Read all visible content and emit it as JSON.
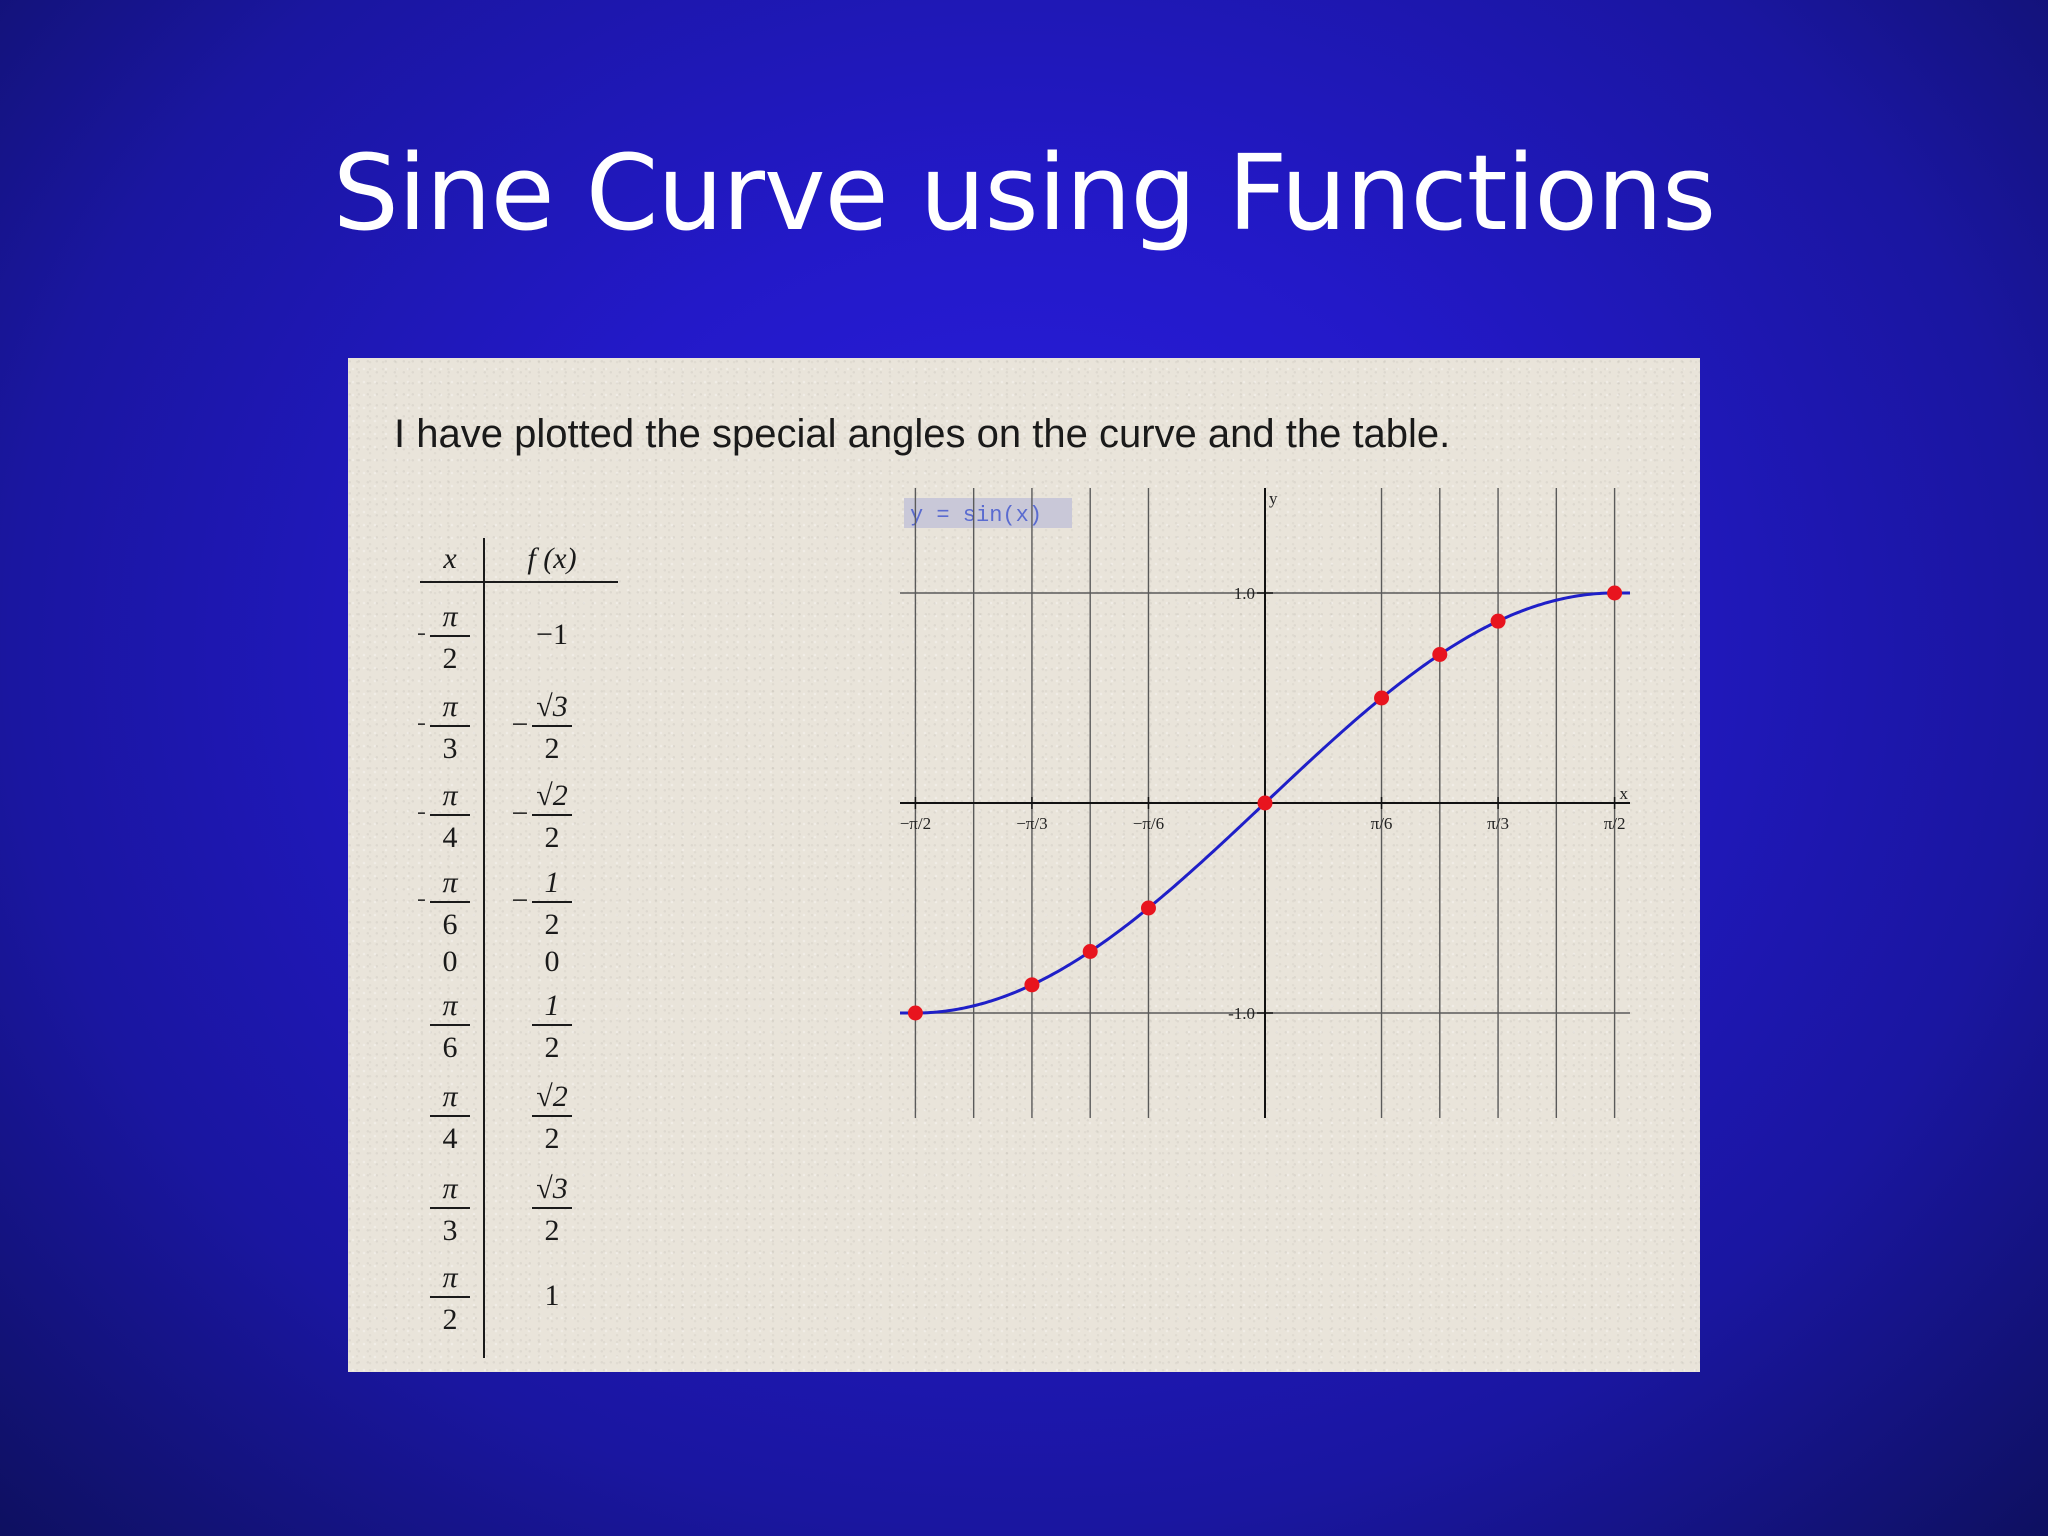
{
  "slide": {
    "title": "Sine Curve using Functions",
    "caption": "I have plotted the special angles on the curve and the table."
  },
  "table": {
    "headers": {
      "x": "x",
      "fx": "f (x)"
    },
    "rows": [
      {
        "x": {
          "sign": "−",
          "num": "π",
          "den": "2"
        },
        "fx": {
          "sign": "",
          "plain": "−1"
        }
      },
      {
        "x": {
          "sign": "−",
          "num": "π",
          "den": "3"
        },
        "fx": {
          "sign": "−",
          "num": "√3",
          "den": "2"
        }
      },
      {
        "x": {
          "sign": "−",
          "num": "π",
          "den": "4"
        },
        "fx": {
          "sign": "−",
          "num": "√2",
          "den": "2"
        }
      },
      {
        "x": {
          "sign": "−",
          "num": "π",
          "den": "6"
        },
        "fx": {
          "sign": "−",
          "num": "1",
          "den": "2"
        }
      },
      {
        "x": {
          "sign": "",
          "plain": "0"
        },
        "fx": {
          "sign": "",
          "plain": "0"
        }
      },
      {
        "x": {
          "sign": "",
          "num": "π",
          "den": "6"
        },
        "fx": {
          "sign": "",
          "num": "1",
          "den": "2"
        }
      },
      {
        "x": {
          "sign": "",
          "num": "π",
          "den": "4"
        },
        "fx": {
          "sign": "",
          "num": "√2",
          "den": "2"
        }
      },
      {
        "x": {
          "sign": "",
          "num": "π",
          "den": "3"
        },
        "fx": {
          "sign": "",
          "num": "√3",
          "den": "2"
        }
      },
      {
        "x": {
          "sign": "",
          "num": "π",
          "den": "2"
        },
        "fx": {
          "sign": "",
          "plain": "1"
        }
      }
    ]
  },
  "chart_data": {
    "type": "line",
    "title": "",
    "equation_label": "y = sin(x)",
    "xlabel": "x",
    "ylabel": "y",
    "xlim": [
      -1.64,
      1.64
    ],
    "ylim": [
      -1.5,
      1.5
    ],
    "grid": true,
    "x_grid": [
      -1.5708,
      -1.309,
      -1.0472,
      -0.7854,
      -0.5236,
      0.5236,
      0.7854,
      1.0472,
      1.309,
      1.5708
    ],
    "y_grid": [
      -1.0,
      0,
      1.0
    ],
    "x_ticks": [
      {
        "value": -1.5708,
        "label": "−π/2"
      },
      {
        "value": -1.0472,
        "label": "−π/3"
      },
      {
        "value": -0.5236,
        "label": "−π/6"
      },
      {
        "value": 0.5236,
        "label": "π/6"
      },
      {
        "value": 1.0472,
        "label": "π/3"
      },
      {
        "value": 1.5708,
        "label": "π/2"
      }
    ],
    "y_ticks": [
      {
        "value": 1.0,
        "label": "1.0"
      },
      {
        "value": -1.0,
        "label": "-1.0"
      }
    ],
    "series": [
      {
        "function": "sin",
        "color": "#1f1fc8"
      }
    ],
    "points": {
      "x": [
        -1.5708,
        -1.0472,
        -0.7854,
        -0.5236,
        0,
        0.5236,
        0.7854,
        1.0472,
        1.5708
      ],
      "y": [
        -1,
        -0.866,
        -0.7071,
        -0.5,
        0,
        0.5,
        0.7071,
        0.866,
        1
      ],
      "color": "#e8141e"
    },
    "colors": {
      "axis": "#111111",
      "grid": "#5a5a5a",
      "curve": "#1f1fc8",
      "points": "#e8141e"
    }
  }
}
